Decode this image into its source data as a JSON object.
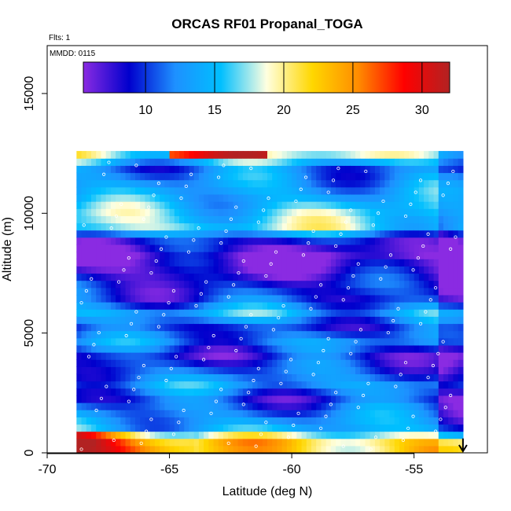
{
  "chart_data": {
    "type": "heatmap",
    "title": "ORCAS RF01 Propanal_TOGA",
    "xlabel": "Latitude (deg N)",
    "ylabel": "Altitude (m)",
    "xlim": [
      -70,
      -52
    ],
    "ylim": [
      0,
      17000
    ],
    "x_ticks": [
      -70,
      -65,
      -60,
      -55
    ],
    "x_tick_labels": [
      "-70",
      "-65",
      "-60",
      "-55"
    ],
    "y_ticks": [
      0,
      5000,
      10000,
      15000
    ],
    "y_tick_labels": [
      "0",
      "5000",
      "10000",
      "15000"
    ],
    "flights_note": "Flts: 1",
    "date_note": "MMDD: 0115",
    "colorbar": {
      "range": [
        5.5,
        32
      ],
      "ticks": [
        10,
        15,
        20,
        25,
        30
      ],
      "tick_labels": [
        "10",
        "15",
        "20",
        "25",
        "30"
      ],
      "colors": [
        "#8a2be2",
        "#0000cd",
        "#1e90ff",
        "#00bfff",
        "#ffffe0",
        "#ffd700",
        "#ff8c00",
        "#ff0000",
        "#b22222"
      ]
    },
    "data_extent": {
      "lat_range": [
        -68.8,
        -53.0
      ],
      "alt_range": [
        0,
        12500
      ]
    },
    "layers": [
      {
        "alt": 300,
        "value": 22
      },
      {
        "alt": 900,
        "value": 14
      },
      {
        "alt": 1500,
        "value": 12
      },
      {
        "alt": 2100,
        "value": 10
      },
      {
        "alt": 2700,
        "value": 13
      },
      {
        "alt": 3300,
        "value": 11
      },
      {
        "alt": 3900,
        "value": 9
      },
      {
        "alt": 4500,
        "value": 12
      },
      {
        "alt": 5100,
        "value": 10
      },
      {
        "alt": 5700,
        "value": 14
      },
      {
        "alt": 6300,
        "value": 10
      },
      {
        "alt": 6900,
        "value": 9
      },
      {
        "alt": 7500,
        "value": 7
      },
      {
        "alt": 8100,
        "value": 6
      },
      {
        "alt": 8700,
        "value": 9
      },
      {
        "alt": 9300,
        "value": 17
      },
      {
        "alt": 9900,
        "value": 16
      },
      {
        "alt": 10500,
        "value": 14
      },
      {
        "alt": 11100,
        "value": 13
      },
      {
        "alt": 11700,
        "value": 12
      },
      {
        "alt": 12300,
        "value": 18
      }
    ],
    "arrow_annotation": {
      "lat": -53.0,
      "alt": 600,
      "direction": "down"
    }
  }
}
